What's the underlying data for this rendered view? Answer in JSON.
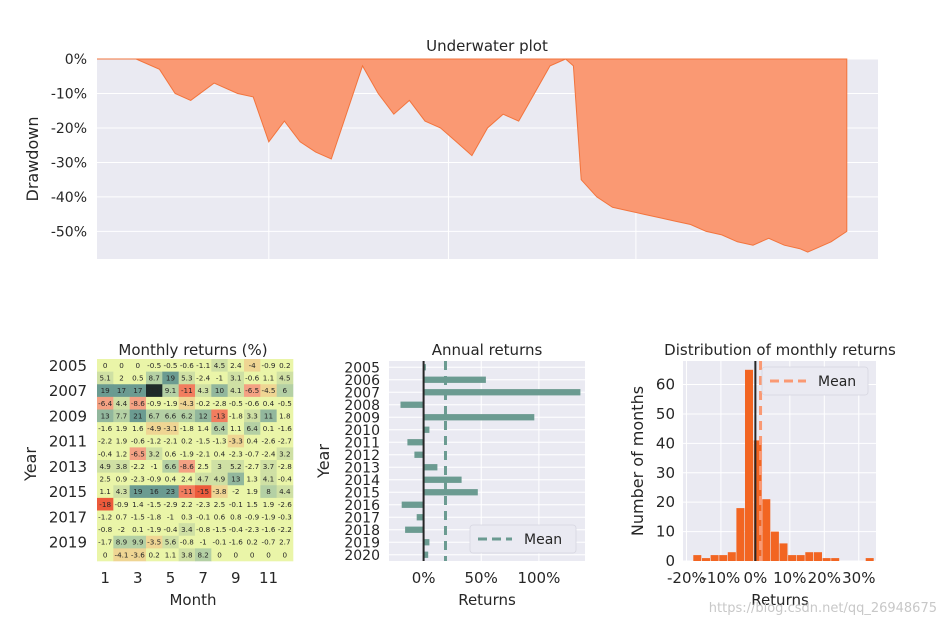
{
  "watermark": "https://blog.csdn.net/qq_26948675",
  "chart_data": [
    {
      "type": "area",
      "title": "Underwater plot",
      "ylabel": "Drawdown",
      "yticks": [
        "0%",
        "-10%",
        "-20%",
        "-30%",
        "-40%",
        "-50%"
      ],
      "ylim": [
        -58,
        0
      ],
      "color": "#fa9973",
      "x": [
        0,
        0.05,
        0.08,
        0.1,
        0.12,
        0.15,
        0.18,
        0.2,
        0.22,
        0.24,
        0.26,
        0.28,
        0.3,
        0.34,
        0.36,
        0.38,
        0.4,
        0.42,
        0.44,
        0.46,
        0.48,
        0.5,
        0.52,
        0.54,
        0.56,
        0.58,
        0.6,
        0.61,
        0.62,
        0.64,
        0.66,
        0.68,
        0.7,
        0.72,
        0.74,
        0.76,
        0.78,
        0.8,
        0.82,
        0.84,
        0.86,
        0.88,
        0.9,
        0.91,
        0.92,
        0.94,
        0.96
      ],
      "values": [
        0,
        0,
        -3,
        -10,
        -12,
        -7,
        -10,
        -11,
        -24,
        -18,
        -24,
        -27,
        -29,
        -2,
        -10,
        -16,
        -12,
        -18,
        -20,
        -24,
        -28,
        -20,
        -16,
        -18,
        -10,
        -2,
        0,
        -2,
        -35,
        -40,
        -43,
        -44,
        -45,
        -46,
        -47,
        -48,
        -50,
        -51,
        -53,
        -54,
        -52,
        -54,
        -55,
        -56,
        -55,
        -53,
        -50
      ]
    },
    {
      "type": "heatmap",
      "title": "Monthly returns (%)",
      "xlabel": "Month",
      "ylabel": "Year",
      "xticks": [
        "1",
        "3",
        "5",
        "7",
        "9",
        "11"
      ],
      "yticks": [
        "2005",
        "2007",
        "2009",
        "2011",
        "2013",
        "2015",
        "2017",
        "2019"
      ],
      "rows": [
        "2005",
        "2006",
        "2007",
        "2008",
        "2009",
        "2010",
        "2011",
        "2012",
        "2013",
        "2014",
        "2015",
        "2016",
        "2017",
        "2018",
        "2019",
        "2020"
      ],
      "cells": [
        [
          "0",
          "0",
          "0",
          "-0.5",
          "-0.5",
          "-0.6",
          "-1.1",
          "4.5",
          "2.4",
          "-4",
          "-0.9",
          "0.2"
        ],
        [
          "5.1",
          "2",
          "0.5",
          "8.7",
          "19",
          "5.3",
          "-2.4",
          "-1",
          "3.1",
          "-0.6",
          "1.1",
          "4.5"
        ],
        [
          "19",
          "17",
          "17",
          "33",
          "9.1",
          "-11",
          "4.3",
          "10",
          "4.1",
          "-6.5",
          "-4.5",
          "6"
        ],
        [
          "-6.4",
          "4.4",
          "-8.6",
          "-0.9",
          "-1.9",
          "-4.3",
          "-0.2",
          "-2.8",
          "-0.5",
          "-0.6",
          "0.4",
          "-0.5"
        ],
        [
          "13",
          "7.7",
          "21",
          "6.7",
          "6.6",
          "6.2",
          "12",
          "-13",
          "-1.8",
          "3.3",
          "11",
          "1.8"
        ],
        [
          "-1.6",
          "1.9",
          "1.6",
          "-4.9",
          "-3.1",
          "-1.8",
          "1.4",
          "6.4",
          "1.1",
          "6.4",
          "0.1",
          "-1.6"
        ],
        [
          "-2.2",
          "1.9",
          "-0.6",
          "-1.2",
          "-2.1",
          "0.2",
          "-1.5",
          "-1.3",
          "-3.3",
          "0.4",
          "-2.6",
          "-2.7"
        ],
        [
          "-0.4",
          "1.2",
          "-6.5",
          "3.2",
          "0.6",
          "-1.9",
          "-2.1",
          "0.4",
          "-2.3",
          "-0.7",
          "-2.4",
          "3.2"
        ],
        [
          "4.9",
          "3.8",
          "-2.2",
          "-1",
          "6.6",
          "-8.6",
          "2.5",
          "3",
          "5.2",
          "-2.7",
          "3.7",
          "-2.8"
        ],
        [
          "2.5",
          "0.9",
          "-2.3",
          "-0.9",
          "0.4",
          "2.4",
          "4.7",
          "4.9",
          "13",
          "1.3",
          "4.1",
          "-0.4"
        ],
        [
          "1.1",
          "4.3",
          "19",
          "16",
          "23",
          "-11",
          "-15",
          "-3.8",
          "-2",
          "1.9",
          "8",
          "4.4"
        ],
        [
          "-18",
          "-0.9",
          "1.4",
          "-1.5",
          "-2.9",
          "2.2",
          "-2.3",
          "2.5",
          "-0.1",
          "1.5",
          "1.9",
          "-2.6"
        ],
        [
          "-1.2",
          "0.7",
          "-1.5",
          "-1.8",
          "-1",
          "0.3",
          "-0.1",
          "0.6",
          "0.8",
          "-0.9",
          "-1.9",
          "-0.3"
        ],
        [
          "-0.8",
          "-2",
          "0.1",
          "-1.9",
          "-0.4",
          "3.4",
          "-0.8",
          "-1.5",
          "-0.4",
          "-2.3",
          "-1.6",
          "-2.2"
        ],
        [
          "-1.7",
          "8.9",
          "9.9",
          "-3.5",
          "5.6",
          "-0.8",
          "-1",
          "-0.1",
          "-1.6",
          "0.2",
          "-0.7",
          "2.7"
        ],
        [
          "0",
          "-4.1",
          "-3.6",
          "0.2",
          "1.1",
          "3.8",
          "8.2",
          "0",
          "0",
          "0",
          "0",
          "0"
        ]
      ]
    },
    {
      "type": "bar",
      "orientation": "horizontal",
      "title": "Annual returns",
      "xlabel": "Returns",
      "ylabel": "Year",
      "xticks": [
        "0%",
        "50%",
        "100%"
      ],
      "xlim": [
        -30,
        140
      ],
      "categories": [
        "2005",
        "2006",
        "2007",
        "2008",
        "2009",
        "2010",
        "2011",
        "2012",
        "2013",
        "2014",
        "2015",
        "2016",
        "2017",
        "2018",
        "2019",
        "2020"
      ],
      "values": [
        2,
        54,
        136,
        -20,
        96,
        5,
        -14,
        -8,
        12,
        33,
        47,
        -19,
        -6,
        -16,
        5,
        4
      ],
      "mean": 19,
      "legend": [
        "Mean"
      ],
      "legend_position": "lower-right",
      "color": "#6b9b91"
    },
    {
      "type": "bar",
      "title": "Distribution of monthly returns",
      "xlabel": "Returns",
      "ylabel": "Number of months",
      "xticks": [
        "-20%",
        "-10%",
        "0%",
        "10%",
        "20%",
        "30%"
      ],
      "yticks": [
        "0",
        "10",
        "20",
        "30",
        "40",
        "50",
        "60"
      ],
      "xlim": [
        -21,
        35
      ],
      "ylim": [
        0,
        68
      ],
      "bin_left_edges": [
        -18,
        -15.5,
        -13,
        -10.5,
        -8,
        -5.5,
        -3,
        -0.5,
        2,
        4.5,
        7,
        9.5,
        12,
        14.5,
        17,
        19.5,
        22,
        24.5,
        27,
        29.5,
        32
      ],
      "bin_width": 2.5,
      "counts": [
        2,
        1,
        2,
        2,
        3,
        18,
        65,
        41,
        21,
        10,
        6,
        2,
        2,
        3,
        3,
        1,
        1,
        0,
        0,
        0,
        1
      ],
      "mean": 1.5,
      "legend": [
        "Mean"
      ],
      "legend_position": "top-right",
      "color": "#f26522",
      "mean_color": "#fa9973"
    }
  ]
}
